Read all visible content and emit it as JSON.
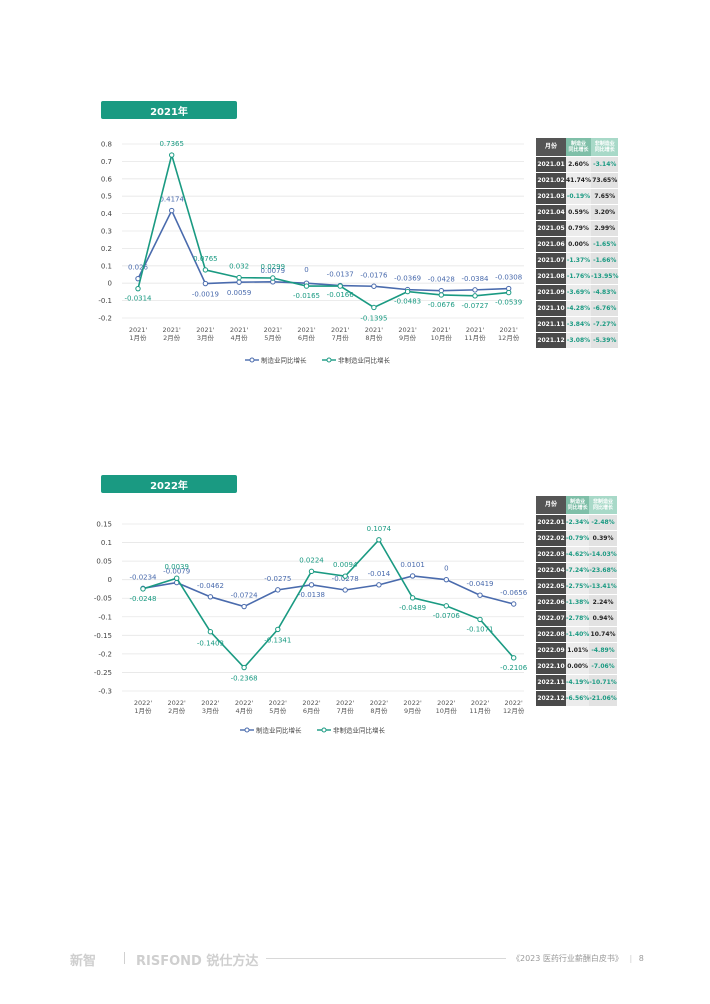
{
  "colors": {
    "manufacturing": "#4a6bad",
    "non_manufacturing": "#1a9a82"
  },
  "sections": [
    {
      "tab_label": "2021年"
    },
    {
      "tab_label": "2022年"
    }
  ],
  "chart_data": [
    {
      "type": "line",
      "title": "",
      "xlabel": "",
      "ylabel": "",
      "categories": [
        [
          "2021'",
          "1月份"
        ],
        [
          "2021'",
          "2月份"
        ],
        [
          "2021'",
          "3月份"
        ],
        [
          "2021'",
          "4月份"
        ],
        [
          "2021'",
          "5月份"
        ],
        [
          "2021'",
          "6月份"
        ],
        [
          "2021'",
          "7月份"
        ],
        [
          "2021'",
          "8月份"
        ],
        [
          "2021'",
          "9月份"
        ],
        [
          "2021'",
          "10月份"
        ],
        [
          "2021'",
          "11月份"
        ],
        [
          "2021'",
          "12月份"
        ]
      ],
      "yticks": [
        "0.8",
        "0.7",
        "0.6",
        "0.5",
        "0.4",
        "0.3",
        "0.2",
        "0.1",
        "0",
        "-0.1",
        "-0.2"
      ],
      "ylim": [
        -0.2,
        0.8
      ],
      "grid": true,
      "legend_position": "bottom",
      "series": [
        {
          "name": "制造业同比增长",
          "values": [
            0.026,
            0.4174,
            -0.0019,
            0.0059,
            0.0079,
            0,
            -0.0137,
            -0.0176,
            -0.0369,
            -0.0428,
            -0.0384,
            -0.0308
          ],
          "labels": [
            "0.026",
            "0.4174",
            "-0.0019",
            "0.0059",
            "0.0079",
            "0",
            "-0.0137",
            "-0.0176",
            "-0.0369",
            "-0.0428",
            "-0.0384",
            "-0.0308"
          ]
        },
        {
          "name": "非制造业同比增长",
          "values": [
            -0.0314,
            0.7365,
            0.0765,
            0.032,
            0.0299,
            -0.0165,
            -0.0166,
            -0.1395,
            -0.0483,
            -0.0676,
            -0.0727,
            -0.0539
          ],
          "labels": [
            "-0.0314",
            "0.7365",
            "0.0765",
            "0.032",
            "0.0299",
            "-0.0165",
            "-0.0166",
            "-0.1395",
            "-0.0483",
            "-0.0676",
            "-0.0727",
            "-0.0539"
          ]
        }
      ]
    },
    {
      "type": "line",
      "title": "",
      "xlabel": "",
      "ylabel": "",
      "categories": [
        [
          "2022'",
          "1月份"
        ],
        [
          "2022'",
          "2月份"
        ],
        [
          "2022'",
          "3月份"
        ],
        [
          "2022'",
          "4月份"
        ],
        [
          "2022'",
          "5月份"
        ],
        [
          "2022'",
          "6月份"
        ],
        [
          "2022'",
          "7月份"
        ],
        [
          "2022'",
          "8月份"
        ],
        [
          "2022'",
          "9月份"
        ],
        [
          "2022'",
          "10月份"
        ],
        [
          "2022'",
          "11月份"
        ],
        [
          "2022'",
          "12月份"
        ]
      ],
      "yticks": [
        "0.15",
        "0.1",
        "0.05",
        "0",
        "-0.05",
        "-0.1",
        "-0.15",
        "-0.2",
        "-0.25",
        "-0.3"
      ],
      "ylim": [
        -0.3,
        0.15
      ],
      "grid": true,
      "legend_position": "bottom",
      "series": [
        {
          "name": "制造业同比增长",
          "values": [
            -0.0234,
            -0.0079,
            -0.0462,
            -0.0724,
            -0.0275,
            -0.0138,
            -0.0278,
            -0.014,
            0.0101,
            0,
            -0.0419,
            -0.0656
          ],
          "labels": [
            "-0.0234",
            "-0.0079",
            "-0.0462",
            "-0.0724",
            "-0.0275",
            "-0.0138",
            "-0.0278",
            "-0.014",
            "0.0101",
            "0",
            "-0.0419",
            "-0.0656"
          ]
        },
        {
          "name": "非制造业同比增长",
          "values": [
            -0.0248,
            0.0039,
            -0.1403,
            -0.2368,
            -0.1341,
            0.0224,
            0.0094,
            0.1074,
            -0.0489,
            -0.0706,
            -0.1071,
            -0.2106
          ],
          "labels": [
            "-0.0248",
            "0.0039",
            "-0.1403",
            "-0.2368",
            "-0.1341",
            "0.0224",
            "0.0094",
            "0.1074",
            "-0.0489",
            "-0.0706",
            "-0.1071",
            "-0.2106"
          ]
        }
      ]
    }
  ],
  "tables": [
    {
      "headers": [
        "月份",
        "制造业同比增长",
        "非制造业同比增长"
      ],
      "rows": [
        [
          "2021.01",
          "2.60%",
          "-3.14%"
        ],
        [
          "2021.02",
          "41.74%",
          "73.65%"
        ],
        [
          "2021.03",
          "-0.19%",
          "7.65%"
        ],
        [
          "2021.04",
          "0.59%",
          "3.20%"
        ],
        [
          "2021.05",
          "0.79%",
          "2.99%"
        ],
        [
          "2021.06",
          "0.00%",
          "-1.65%"
        ],
        [
          "2021.07",
          "-1.37%",
          "-1.66%"
        ],
        [
          "2021.08",
          "-1.76%",
          "-13.95%"
        ],
        [
          "2021.09",
          "-3.69%",
          "-4.83%"
        ],
        [
          "2021.10",
          "-4.28%",
          "-6.76%"
        ],
        [
          "2021.11",
          "-3.84%",
          "-7.27%"
        ],
        [
          "2021.12",
          "-3.08%",
          "-5.39%"
        ]
      ]
    },
    {
      "headers": [
        "月份",
        "制造业同比增长",
        "非制造业同比增长"
      ],
      "rows": [
        [
          "2022.01",
          "-2.34%",
          "-2.48%"
        ],
        [
          "2022.02",
          "-0.79%",
          "0.39%"
        ],
        [
          "2022.03",
          "-4.62%",
          "-14.03%"
        ],
        [
          "2022.04",
          "-7.24%",
          "-23.68%"
        ],
        [
          "2022.05",
          "-2.75%",
          "-13.41%"
        ],
        [
          "2022.06",
          "-1.38%",
          "2.24%"
        ],
        [
          "2022.07",
          "-2.78%",
          "0.94%"
        ],
        [
          "2022.08",
          "-1.40%",
          "10.74%"
        ],
        [
          "2022.09",
          "1.01%",
          "-4.89%"
        ],
        [
          "2022.10",
          "0.00%",
          "-7.06%"
        ],
        [
          "2022.11",
          "-4.19%",
          "-10.71%"
        ],
        [
          "2022.12",
          "-6.56%",
          "-21.06%"
        ]
      ]
    }
  ],
  "footer": {
    "brand1": "新智",
    "brand2": "RISFOND 锐仕方达",
    "doc_title": "《2023 医药行业薪酬白皮书》",
    "page_number": "8"
  }
}
